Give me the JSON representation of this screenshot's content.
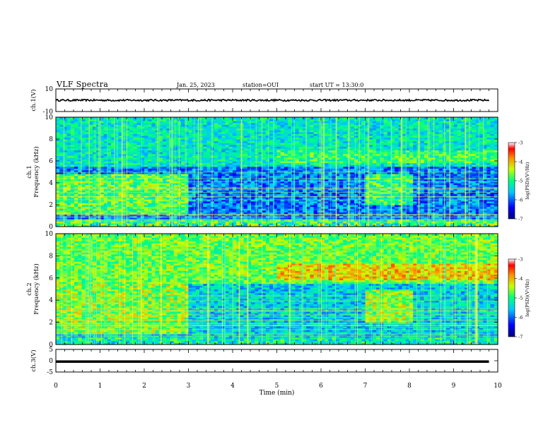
{
  "header": {
    "title": "VLF Spectra",
    "date": "Jan. 25, 2023",
    "station": "station=OUI",
    "start": "start UT = 13:30:0"
  },
  "chart_data": [
    {
      "type": "line",
      "panel": "ch1-waveform",
      "ylabel": "ch.1(V)",
      "ylim": [
        -10,
        10
      ],
      "yticks": [
        "10",
        "-10"
      ],
      "x": [
        0,
        9.8
      ],
      "series": [
        {
          "values": [
            0,
            0
          ]
        }
      ]
    },
    {
      "type": "heatmap",
      "panel": "ch1-spectrogram",
      "ylabel": "ch.1\nFrequency (kHz)",
      "ylim": [
        0,
        10
      ],
      "yticks": [
        "0",
        "2",
        "4",
        "6",
        "8",
        "10"
      ],
      "xlim": [
        0,
        10
      ],
      "colorbar": {
        "label": "log(PSD)(V²/Hz)",
        "range": [
          -7,
          -3
        ],
        "ticks": [
          "-3",
          "-4",
          "-5",
          "-6",
          "-7"
        ]
      }
    },
    {
      "type": "heatmap",
      "panel": "ch2-spectrogram",
      "ylabel": "ch.2\nFrequency (kHz)",
      "ylim": [
        0,
        10
      ],
      "yticks": [
        "0",
        "2",
        "4",
        "6",
        "8",
        "10"
      ],
      "xlim": [
        0,
        10
      ],
      "colorbar": {
        "label": "log(PSD)(V²/Hz)",
        "range": [
          -7,
          -3
        ],
        "ticks": [
          "-3",
          "-4",
          "-5",
          "-6",
          "-7"
        ]
      }
    },
    {
      "type": "line",
      "panel": "ch3-waveform",
      "ylabel": "ch.3(V)",
      "ylim": [
        -5,
        5
      ],
      "yticks": [
        "5",
        "0",
        "-5"
      ],
      "x": [
        0,
        9.8
      ],
      "series": [
        {
          "values": [
            -0.4,
            -0.4
          ]
        }
      ]
    }
  ],
  "xaxis": {
    "label": "Time (min)",
    "ticks": [
      "0",
      "1",
      "2",
      "3",
      "4",
      "5",
      "6",
      "7",
      "8",
      "9",
      "10"
    ],
    "range": [
      0,
      10
    ]
  }
}
